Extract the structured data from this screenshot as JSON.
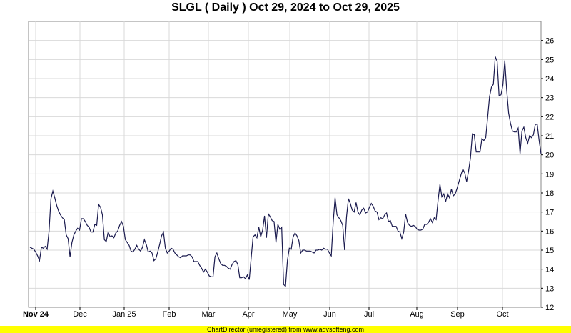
{
  "chart_data": {
    "type": "line",
    "title": "SLGL ( Daily ) Oct 29, 2024 to Oct 29, 2025",
    "xlabel": "",
    "ylabel": "",
    "x_tick_labels": [
      "Nov 24",
      "Dec",
      "Jan 25",
      "Feb",
      "Mar",
      "Apr",
      "May",
      "Jun",
      "Jul",
      "Aug",
      "Sep",
      "Oct"
    ],
    "ylim": [
      12,
      27
    ],
    "y_ticks": [
      12,
      13,
      14,
      15,
      16,
      17,
      18,
      19,
      20,
      21,
      22,
      23,
      24,
      25,
      26
    ],
    "grid": true,
    "series": [
      {
        "values": [
          15.15,
          15.1,
          15.05,
          14.9,
          14.7,
          14.45,
          15.15,
          15.1,
          15.2,
          15.05,
          16.0,
          17.7,
          18.1,
          17.75,
          17.35,
          17.05,
          16.85,
          16.7,
          16.6,
          15.8,
          15.6,
          14.65,
          15.4,
          15.8,
          16.0,
          16.15,
          16.05,
          16.65,
          16.65,
          16.5,
          16.3,
          16.2,
          15.95,
          15.95,
          16.35,
          16.3,
          17.4,
          17.25,
          16.85,
          15.55,
          15.45,
          15.95,
          15.7,
          15.75,
          15.65,
          15.9,
          16.0,
          16.3,
          16.5,
          16.25,
          15.55,
          15.4,
          15.25,
          14.95,
          14.9,
          15.05,
          15.25,
          15.05,
          14.95,
          15.15,
          15.55,
          15.3,
          14.9,
          14.95,
          14.85,
          14.45,
          14.55,
          14.9,
          15.3,
          15.75,
          15.95,
          15.1,
          14.85,
          14.95,
          15.1,
          15.05,
          14.85,
          14.75,
          14.65,
          14.6,
          14.7,
          14.7,
          14.7,
          14.75,
          14.75,
          14.65,
          14.4,
          14.4,
          14.4,
          14.2,
          14.05,
          13.85,
          14.0,
          13.85,
          13.65,
          13.6,
          13.6,
          14.65,
          14.85,
          14.55,
          14.3,
          14.2,
          14.2,
          14.15,
          14.05,
          14.0,
          14.25,
          14.4,
          14.45,
          14.25,
          13.55,
          13.55,
          13.6,
          13.5,
          13.7,
          13.45,
          14.6,
          15.7,
          15.8,
          15.65,
          16.2,
          15.7,
          16.05,
          16.8,
          15.65,
          16.9,
          16.75,
          16.55,
          16.5,
          15.4,
          16.35,
          16.1,
          16.2,
          13.2,
          13.1,
          14.45,
          15.1,
          15.05,
          15.7,
          15.9,
          15.75,
          15.5,
          14.85,
          15.0,
          15.0,
          14.95,
          14.95,
          14.95,
          14.9,
          14.85,
          15.0,
          15.0,
          15.05,
          15.0,
          15.1,
          15.05,
          15.05,
          14.85,
          14.7,
          16.45,
          17.75,
          16.85,
          16.7,
          16.55,
          16.3,
          15.0,
          16.75,
          17.7,
          17.45,
          17.1,
          17.0,
          17.5,
          17.0,
          16.85,
          17.1,
          17.2,
          16.95,
          17.0,
          17.25,
          17.45,
          17.3,
          17.05,
          17.0,
          16.6,
          16.7,
          16.65,
          16.85,
          16.95,
          16.5,
          16.55,
          16.25,
          16.25,
          16.25,
          16.0,
          15.95,
          15.6,
          15.95,
          16.9,
          16.45,
          16.3,
          16.25,
          16.3,
          16.25,
          16.1,
          16.05,
          16.05,
          16.1,
          16.35,
          16.35,
          16.45,
          16.65,
          16.45,
          16.7,
          16.6,
          17.6,
          18.45,
          17.8,
          17.95,
          17.55,
          17.95,
          17.75,
          18.2,
          17.85,
          17.95,
          18.25,
          18.6,
          18.95,
          19.25,
          19.05,
          18.6,
          19.15,
          19.85,
          21.1,
          21.05,
          20.15,
          20.15,
          20.15,
          20.85,
          20.75,
          20.9,
          21.95,
          23.05,
          23.55,
          23.7,
          25.15,
          24.9,
          23.1,
          23.15,
          23.65,
          24.95,
          23.4,
          22.2,
          21.65,
          21.25,
          21.2,
          21.2,
          21.4,
          20.05,
          21.25,
          21.45,
          20.9,
          20.6,
          21.0,
          20.9,
          21.05,
          21.6,
          21.6,
          20.75,
          20.05
        ]
      }
    ]
  },
  "colors": {
    "line": "#1a1a4e",
    "grid": "#d9d9d9",
    "axis": "#000000",
    "footer_bg": "#ffff00"
  },
  "footer": {
    "text": "ChartDirector (unregistered) from www.advsofteng.com"
  }
}
